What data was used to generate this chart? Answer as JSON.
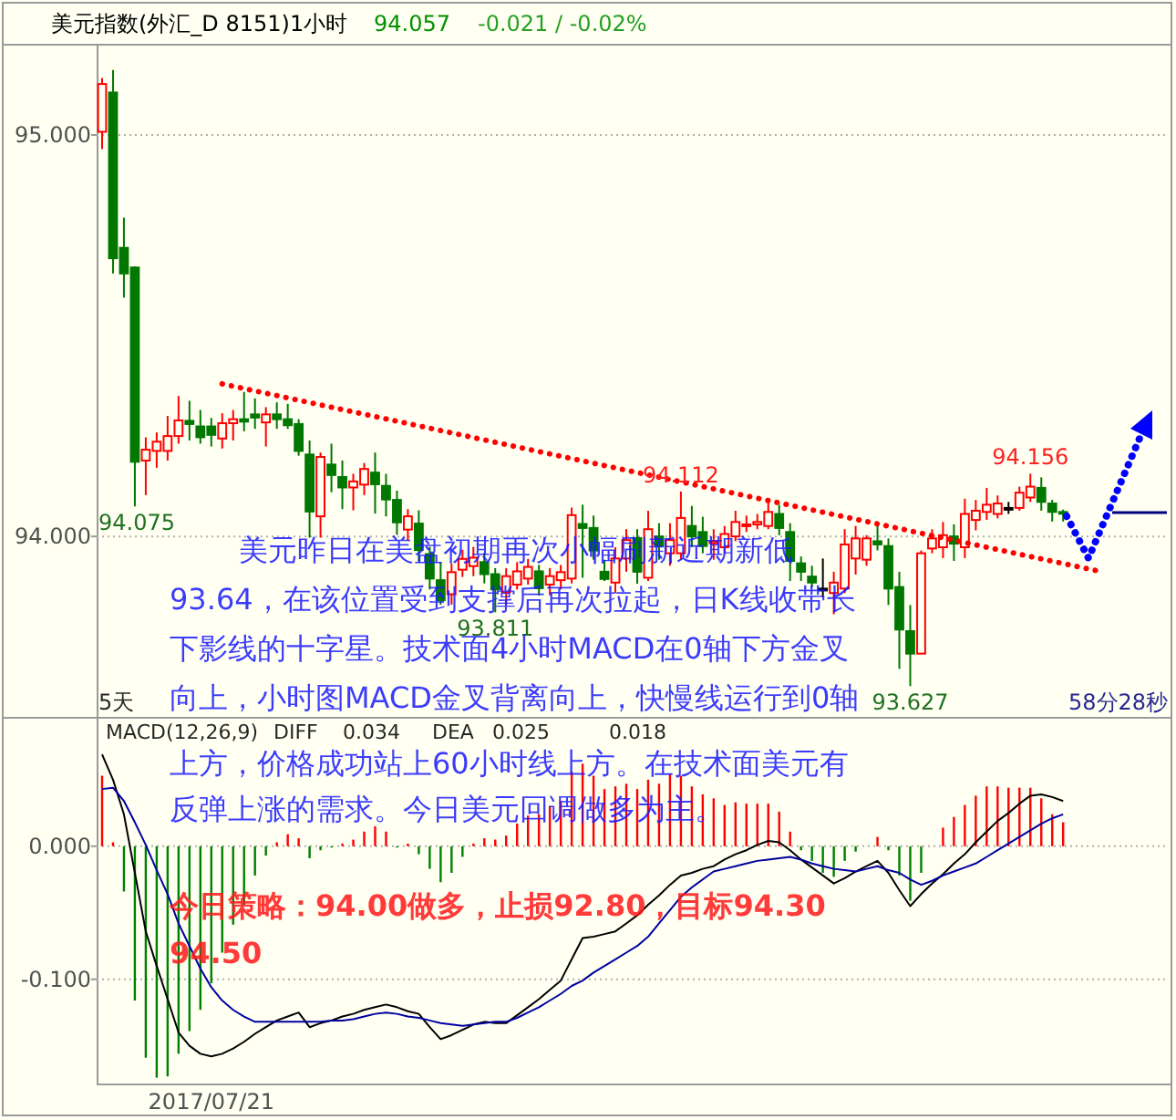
{
  "chart_data": [
    {
      "type": "candlestick",
      "title": "美元指数(外汇_D 8151)1小时",
      "subtitle": "94.057",
      "categories": [
        null,
        null,
        null,
        null,
        null,
        null,
        null,
        null,
        null,
        null,
        null,
        null,
        null,
        null,
        null,
        null,
        null,
        null,
        null,
        null,
        null,
        null,
        null,
        null,
        null,
        null,
        null,
        null,
        null,
        null,
        null,
        null,
        null,
        null,
        null,
        null,
        null,
        null,
        null,
        null,
        null,
        null,
        null,
        null,
        null,
        null,
        null,
        null,
        null,
        null,
        null,
        null,
        null,
        null,
        null,
        null,
        null,
        null,
        null,
        null,
        null,
        null,
        null,
        null,
        null,
        null,
        null,
        null,
        null,
        null,
        null,
        null,
        null,
        null,
        null,
        null,
        null,
        null,
        null,
        null,
        null,
        null,
        null,
        null,
        null,
        null,
        null,
        null,
        null,
        null,
        null,
        null,
        null,
        null,
        null,
        null,
        null,
        null
      ],
      "ohlc": [
        [
          95.008,
          95.142,
          94.965,
          95.127
        ],
        [
          95.106,
          95.162,
          94.655,
          94.693
        ],
        [
          94.719,
          94.794,
          94.595,
          94.655
        ],
        [
          94.67,
          94.673,
          94.075,
          94.186
        ],
        [
          94.189,
          94.247,
          94.103,
          94.216
        ],
        [
          94.213,
          94.259,
          94.171,
          94.236
        ],
        [
          94.213,
          94.3,
          94.189,
          94.25
        ],
        [
          94.25,
          94.35,
          94.231,
          94.289
        ],
        [
          94.288,
          94.338,
          94.239,
          94.28
        ],
        [
          94.274,
          94.315,
          94.231,
          94.247
        ],
        [
          94.274,
          94.295,
          94.224,
          94.253
        ],
        [
          94.244,
          94.307,
          94.219,
          94.282
        ],
        [
          94.282,
          94.315,
          94.239,
          94.292
        ],
        [
          94.292,
          94.36,
          94.262,
          94.286
        ],
        [
          94.304,
          94.344,
          94.268,
          94.296
        ],
        [
          94.284,
          94.322,
          94.224,
          94.304
        ],
        [
          94.304,
          94.334,
          94.268,
          94.292
        ],
        [
          94.292,
          94.33,
          94.268,
          94.277
        ],
        [
          94.28,
          94.292,
          94.201,
          94.213
        ],
        [
          94.204,
          94.239,
          93.997,
          94.062
        ],
        [
          94.05,
          94.209,
          93.997,
          94.198
        ],
        [
          94.179,
          94.231,
          94.11,
          94.153
        ],
        [
          94.148,
          94.189,
          94.068,
          94.122
        ],
        [
          94.122,
          94.156,
          94.065,
          94.137
        ],
        [
          94.129,
          94.183,
          94.103,
          94.168
        ],
        [
          94.159,
          94.209,
          94.057,
          94.13
        ],
        [
          94.126,
          94.156,
          94.05,
          94.092
        ],
        [
          94.091,
          94.114,
          94.004,
          94.035
        ],
        [
          94.017,
          94.068,
          93.989,
          94.05
        ],
        [
          94.032,
          94.065,
          93.936,
          93.966
        ],
        [
          93.956,
          93.974,
          93.868,
          93.895
        ],
        [
          93.891,
          93.936,
          93.83,
          93.841
        ],
        [
          93.856,
          93.932,
          93.83,
          93.911
        ],
        [
          93.917,
          93.967,
          93.899,
          93.944
        ],
        [
          93.926,
          93.974,
          93.901,
          93.947
        ],
        [
          93.936,
          93.959,
          93.883,
          93.906
        ],
        [
          93.906,
          93.921,
          93.811,
          93.868
        ],
        [
          93.861,
          93.921,
          93.83,
          93.901
        ],
        [
          93.88,
          93.936,
          93.868,
          93.913
        ],
        [
          93.895,
          93.944,
          93.88,
          93.924
        ],
        [
          93.913,
          93.929,
          93.853,
          93.871
        ],
        [
          93.88,
          93.921,
          93.853,
          93.901
        ],
        [
          93.891,
          93.929,
          93.868,
          93.911
        ],
        [
          93.895,
          94.072,
          93.883,
          94.053
        ],
        [
          94.031,
          94.079,
          93.897,
          94.021
        ],
        [
          94.021,
          94.052,
          93.942,
          93.965
        ],
        [
          93.912,
          93.942,
          93.889,
          93.894
        ],
        [
          93.885,
          93.973,
          93.859,
          93.945
        ],
        [
          93.945,
          94.018,
          93.912,
          93.991
        ],
        [
          93.996,
          94.018,
          93.882,
          93.912
        ],
        [
          93.897,
          94.064,
          93.889,
          94.018
        ],
        [
          94.0,
          94.033,
          93.942,
          93.976
        ],
        [
          93.958,
          94.033,
          93.927,
          93.991
        ],
        [
          93.958,
          94.112,
          93.942,
          94.046
        ],
        [
          94.026,
          94.076,
          93.973,
          94.0
        ],
        [
          94.011,
          94.049,
          93.958,
          93.976
        ],
        [
          93.983,
          94.018,
          93.942,
          93.988
        ],
        [
          93.973,
          94.026,
          93.958,
          94.006
        ],
        [
          94.0,
          94.064,
          93.988,
          94.036
        ],
        [
          94.026,
          94.052,
          94.011,
          94.03
        ],
        [
          94.03,
          94.056,
          94.018,
          94.036
        ],
        [
          94.026,
          94.094,
          94.018,
          94.061
        ],
        [
          94.056,
          94.079,
          94.003,
          94.021
        ],
        [
          94.011,
          94.033,
          93.889,
          93.939
        ],
        [
          93.933,
          93.95,
          93.889,
          93.912
        ],
        [
          93.9,
          93.927,
          93.874,
          93.885
        ],
        [
          93.87,
          93.945,
          93.849,
          93.87
        ],
        [
          93.859,
          93.912,
          93.806,
          93.885
        ],
        [
          93.87,
          94.018,
          93.859,
          93.98
        ],
        [
          93.945,
          94.026,
          93.905,
          93.995
        ],
        [
          93.942,
          94.003,
          93.927,
          93.995
        ],
        [
          93.988,
          94.03,
          93.965,
          93.98
        ],
        [
          93.976,
          93.995,
          93.829,
          93.87
        ],
        [
          93.874,
          93.912,
          93.67,
          93.768
        ],
        [
          93.764,
          93.829,
          93.627,
          93.708
        ],
        [
          93.708,
          93.965,
          93.708,
          93.958
        ],
        [
          93.97,
          94.018,
          93.958,
          93.995
        ],
        [
          93.973,
          94.036,
          93.946,
          94.003
        ],
        [
          94.0,
          94.03,
          93.939,
          93.982
        ],
        [
          93.973,
          94.094,
          93.946,
          94.056
        ],
        [
          94.041,
          94.091,
          94.015,
          94.064
        ],
        [
          94.061,
          94.121,
          94.041,
          94.079
        ],
        [
          94.056,
          94.102,
          94.045,
          94.082
        ],
        [
          94.071,
          94.086,
          94.056,
          94.071
        ],
        [
          94.071,
          94.124,
          94.064,
          94.109
        ],
        [
          94.097,
          94.156,
          94.086,
          94.124
        ],
        [
          94.121,
          94.147,
          94.064,
          94.086
        ],
        [
          94.082,
          94.091,
          94.037,
          94.061
        ],
        [
          94.061,
          94.067,
          94.037,
          94.057
        ],
        null,
        null,
        null,
        null,
        null,
        null,
        null,
        null,
        null
      ],
      "series": [
        {
          "type": "line",
          "color": "#ff0000",
          "line_style": "dotted",
          "values": [
            null,
            null,
            null,
            null,
            null,
            null,
            null,
            null,
            null,
            null,
            null,
            94.38,
            null,
            null,
            null,
            null,
            null,
            null,
            null,
            null,
            null,
            null,
            null,
            null,
            null,
            null,
            null,
            null,
            null,
            null,
            null,
            null,
            null,
            null,
            null,
            null,
            null,
            null,
            null,
            null,
            null,
            null,
            null,
            null,
            null,
            null,
            null,
            null,
            null,
            null,
            null,
            null,
            null,
            null,
            null,
            null,
            null,
            null,
            null,
            null,
            null,
            null,
            null,
            null,
            null,
            null,
            null,
            null,
            null,
            null,
            null,
            null,
            null,
            null,
            null,
            null,
            null,
            null,
            null,
            null,
            null,
            null,
            null,
            null,
            null,
            null,
            null,
            null,
            null,
            null,
            null,
            93.915,
            null,
            null,
            null,
            null,
            null,
            null
          ]
        }
      ],
      "ylim": [
        93.555,
        95.22
      ],
      "yticks": [
        {
          "value": 95,
          "label": "95.000"
        },
        {
          "value": 94,
          "label": "94.000"
        }
      ],
      "grid": "y",
      "tick_labels": "y",
      "annotations": [
        "-0.021 / -0.02%",
        {
          "text": "94.075",
          "y": 94.075
        },
        {
          "text": "93.811",
          "y": 93.811
        },
        {
          "text": "94.112",
          "y": 94.112
        },
        {
          "text": "93.627",
          "y": 93.627
        },
        {
          "text": "94.156",
          "y": 94.156
        },
        "5天",
        "58分28秒",
        "美元昨日在美盘初期再次小幅刷新近期新低",
        "93.64，在该位置受到支撑后再次拉起，日K线收带长",
        "下影线的十字星。技术面4小时MACD在0轴下方金叉",
        "向上，小时图MACD金叉背离向上，快慢线运行到0轴",
        "上方，价格成功站上60小时线上方。在技术面美元有",
        "反弹上涨的需求。今日美元回调做多为主。"
      ]
    },
    {
      "type": "bar",
      "categories": [
        null,
        null,
        null,
        null,
        null,
        null,
        null,
        null,
        null,
        null,
        "2017/07/21",
        null,
        null,
        null,
        null,
        null,
        null,
        null,
        null,
        null,
        null,
        null,
        null,
        null,
        null,
        null,
        null,
        null,
        null,
        null,
        null,
        null,
        null,
        null,
        null,
        null,
        null,
        null,
        null,
        null,
        null,
        null,
        null,
        null,
        null,
        null,
        null,
        null,
        null,
        null,
        null,
        null,
        null,
        null,
        null,
        null,
        null,
        null,
        null,
        null,
        null,
        null,
        null,
        null,
        null,
        null,
        null,
        null,
        null,
        null,
        null,
        null,
        null,
        null,
        null,
        null,
        null,
        null,
        null,
        null,
        null,
        null,
        null,
        null,
        null,
        null,
        null,
        null,
        null,
        null,
        null,
        null,
        null,
        null,
        null,
        null,
        null,
        null
      ],
      "series": [
        {
          "type": "bar",
          "values": [
            0.053,
            0.003,
            -0.034,
            -0.116,
            -0.159,
            -0.174,
            -0.173,
            -0.156,
            -0.139,
            -0.123,
            -0.103,
            -0.08,
            -0.059,
            -0.044,
            -0.022,
            -0.007,
            0.003,
            0.009,
            0.006,
            -0.009,
            -0.003,
            -0.001,
            0.002,
            0.005,
            0.011,
            0.015,
            0.011,
            -0.001,
            0.002,
            -0.006,
            -0.017,
            -0.027,
            -0.02,
            -0.008,
            0.002,
            0.006,
            0.005,
            0.008,
            0.017,
            0.023,
            0.024,
            0.03,
            0.034,
            0.056,
            0.062,
            0.053,
            0.043,
            0.045,
            0.047,
            0.043,
            0.05,
            0.047,
            0.054,
            0.053,
            0.045,
            0.039,
            0.036,
            0.031,
            0.033,
            0.032,
            0.032,
            0.032,
            0.026,
            0.011,
            -0.003,
            -0.011,
            -0.02,
            -0.023,
            -0.011,
            -0.004,
            null,
            0.007,
            -0.003,
            -0.022,
            -0.041,
            -0.02,
            null,
            0.014,
            0.022,
            0.031,
            0.038,
            0.045,
            0.045,
            0.044,
            0.044,
            0.044,
            0.036,
            0.024,
            0.018,
            null,
            null,
            null,
            null,
            null,
            null,
            null,
            null,
            null
          ],
          "colors": [
            "#ff0000",
            "#ff0000",
            "#008000",
            "#008000",
            "#008000",
            "#008000",
            "#008000",
            "#008000",
            "#008000",
            "#008000",
            "#008000",
            "#008000",
            "#008000",
            "#008000",
            "#008000",
            "#008000",
            "#ff0000",
            "#ff0000",
            "#ff0000",
            "#008000",
            "#008000",
            "#008000",
            "#ff0000",
            "#ff0000",
            "#ff0000",
            "#ff0000",
            "#ff0000",
            "#008000",
            "#ff0000",
            "#008000",
            "#008000",
            "#008000",
            "#008000",
            "#008000",
            "#ff0000",
            "#ff0000",
            "#ff0000",
            "#ff0000",
            "#ff0000",
            "#ff0000",
            "#ff0000",
            "#ff0000",
            "#ff0000",
            "#ff0000",
            "#ff0000",
            "#ff0000",
            "#ff0000",
            "#ff0000",
            "#ff0000",
            "#ff0000",
            "#ff0000",
            "#ff0000",
            "#ff0000",
            "#ff0000",
            "#ff0000",
            "#ff0000",
            "#ff0000",
            "#ff0000",
            "#ff0000",
            "#ff0000",
            "#ff0000",
            "#ff0000",
            "#ff0000",
            "#ff0000",
            "#008000",
            "#008000",
            "#008000",
            "#008000",
            "#008000",
            "#008000",
            null,
            "#ff0000",
            "#008000",
            "#008000",
            "#008000",
            "#008000",
            null,
            "#ff0000",
            "#ff0000",
            "#ff0000",
            "#ff0000",
            "#ff0000",
            "#ff0000",
            "#ff0000",
            "#ff0000",
            "#ff0000",
            "#ff0000",
            "#ff0000",
            "#ff0000",
            null,
            null,
            null,
            null,
            null,
            null,
            null,
            null,
            null
          ]
        },
        {
          "type": "line",
          "color": "#000000",
          "values": [
            0.069,
            0.05,
            0.024,
            -0.02,
            -0.064,
            -0.09,
            -0.115,
            -0.14,
            -0.15,
            -0.156,
            -0.158,
            -0.156,
            -0.152,
            -0.147,
            -0.141,
            -0.136,
            -0.131,
            -0.128,
            -0.125,
            -0.136,
            -0.133,
            -0.131,
            -0.128,
            -0.126,
            -0.123,
            -0.121,
            -0.119,
            -0.121,
            -0.124,
            -0.126,
            -0.136,
            -0.145,
            -0.142,
            -0.138,
            -0.134,
            -0.132,
            -0.133,
            -0.133,
            -0.127,
            -0.121,
            -0.115,
            -0.108,
            -0.101,
            -0.085,
            -0.069,
            -0.068,
            -0.066,
            -0.064,
            -0.058,
            -0.052,
            -0.044,
            -0.037,
            -0.029,
            -0.022,
            -0.02,
            -0.017,
            -0.015,
            -0.01,
            -0.006,
            -0.003,
            0.001,
            0.004,
            0.003,
            -0.003,
            -0.01,
            -0.016,
            -0.022,
            -0.028,
            -0.024,
            -0.019,
            -0.015,
            -0.011,
            -0.02,
            -0.033,
            -0.045,
            -0.036,
            -0.028,
            -0.021,
            -0.013,
            -0.006,
            0.003,
            0.011,
            0.019,
            0.025,
            0.032,
            0.038,
            0.039,
            0.037,
            0.034,
            null,
            null,
            null,
            null,
            null,
            null,
            null,
            null,
            null
          ]
        },
        {
          "type": "line",
          "color": "#0000a0",
          "values": [
            0.043,
            0.044,
            0.034,
            0.018,
            0.001,
            -0.018,
            -0.036,
            -0.058,
            -0.075,
            -0.092,
            -0.106,
            -0.116,
            -0.123,
            -0.128,
            -0.132,
            -0.132,
            -0.132,
            -0.132,
            -0.132,
            -0.132,
            -0.132,
            -0.131,
            -0.131,
            -0.13,
            -0.128,
            -0.126,
            -0.125,
            -0.126,
            -0.128,
            -0.129,
            -0.131,
            -0.133,
            -0.134,
            -0.135,
            -0.134,
            -0.133,
            -0.132,
            -0.132,
            -0.129,
            -0.125,
            -0.121,
            -0.116,
            -0.111,
            -0.105,
            -0.101,
            -0.095,
            -0.09,
            -0.085,
            -0.08,
            -0.075,
            -0.068,
            -0.058,
            -0.048,
            -0.038,
            -0.031,
            -0.025,
            -0.019,
            -0.017,
            -0.015,
            -0.013,
            -0.011,
            -0.01,
            -0.009,
            -0.008,
            -0.01,
            -0.013,
            -0.015,
            -0.017,
            -0.018,
            -0.019,
            -0.017,
            -0.015,
            -0.018,
            -0.02,
            -0.025,
            -0.029,
            -0.026,
            -0.022,
            -0.019,
            -0.016,
            -0.013,
            -0.008,
            -0.003,
            0.002,
            0.007,
            0.012,
            0.017,
            0.021,
            0.024,
            null,
            null,
            null,
            null,
            null,
            null,
            null,
            null,
            null
          ]
        }
      ],
      "ylim": [
        -0.177,
        0.0945
      ],
      "yticks": [
        {
          "value": 0,
          "label": "0.000"
        },
        {
          "value": -0.1,
          "label": "-0.100"
        }
      ],
      "grid": "y",
      "annotations": [
        "MACD(12,26,9)",
        "DIFF",
        "0.034",
        "DEA",
        "0.025",
        "0.018",
        "今日策略：94.00做多，止损92.80，目标94.30",
        "94.50"
      ]
    }
  ]
}
